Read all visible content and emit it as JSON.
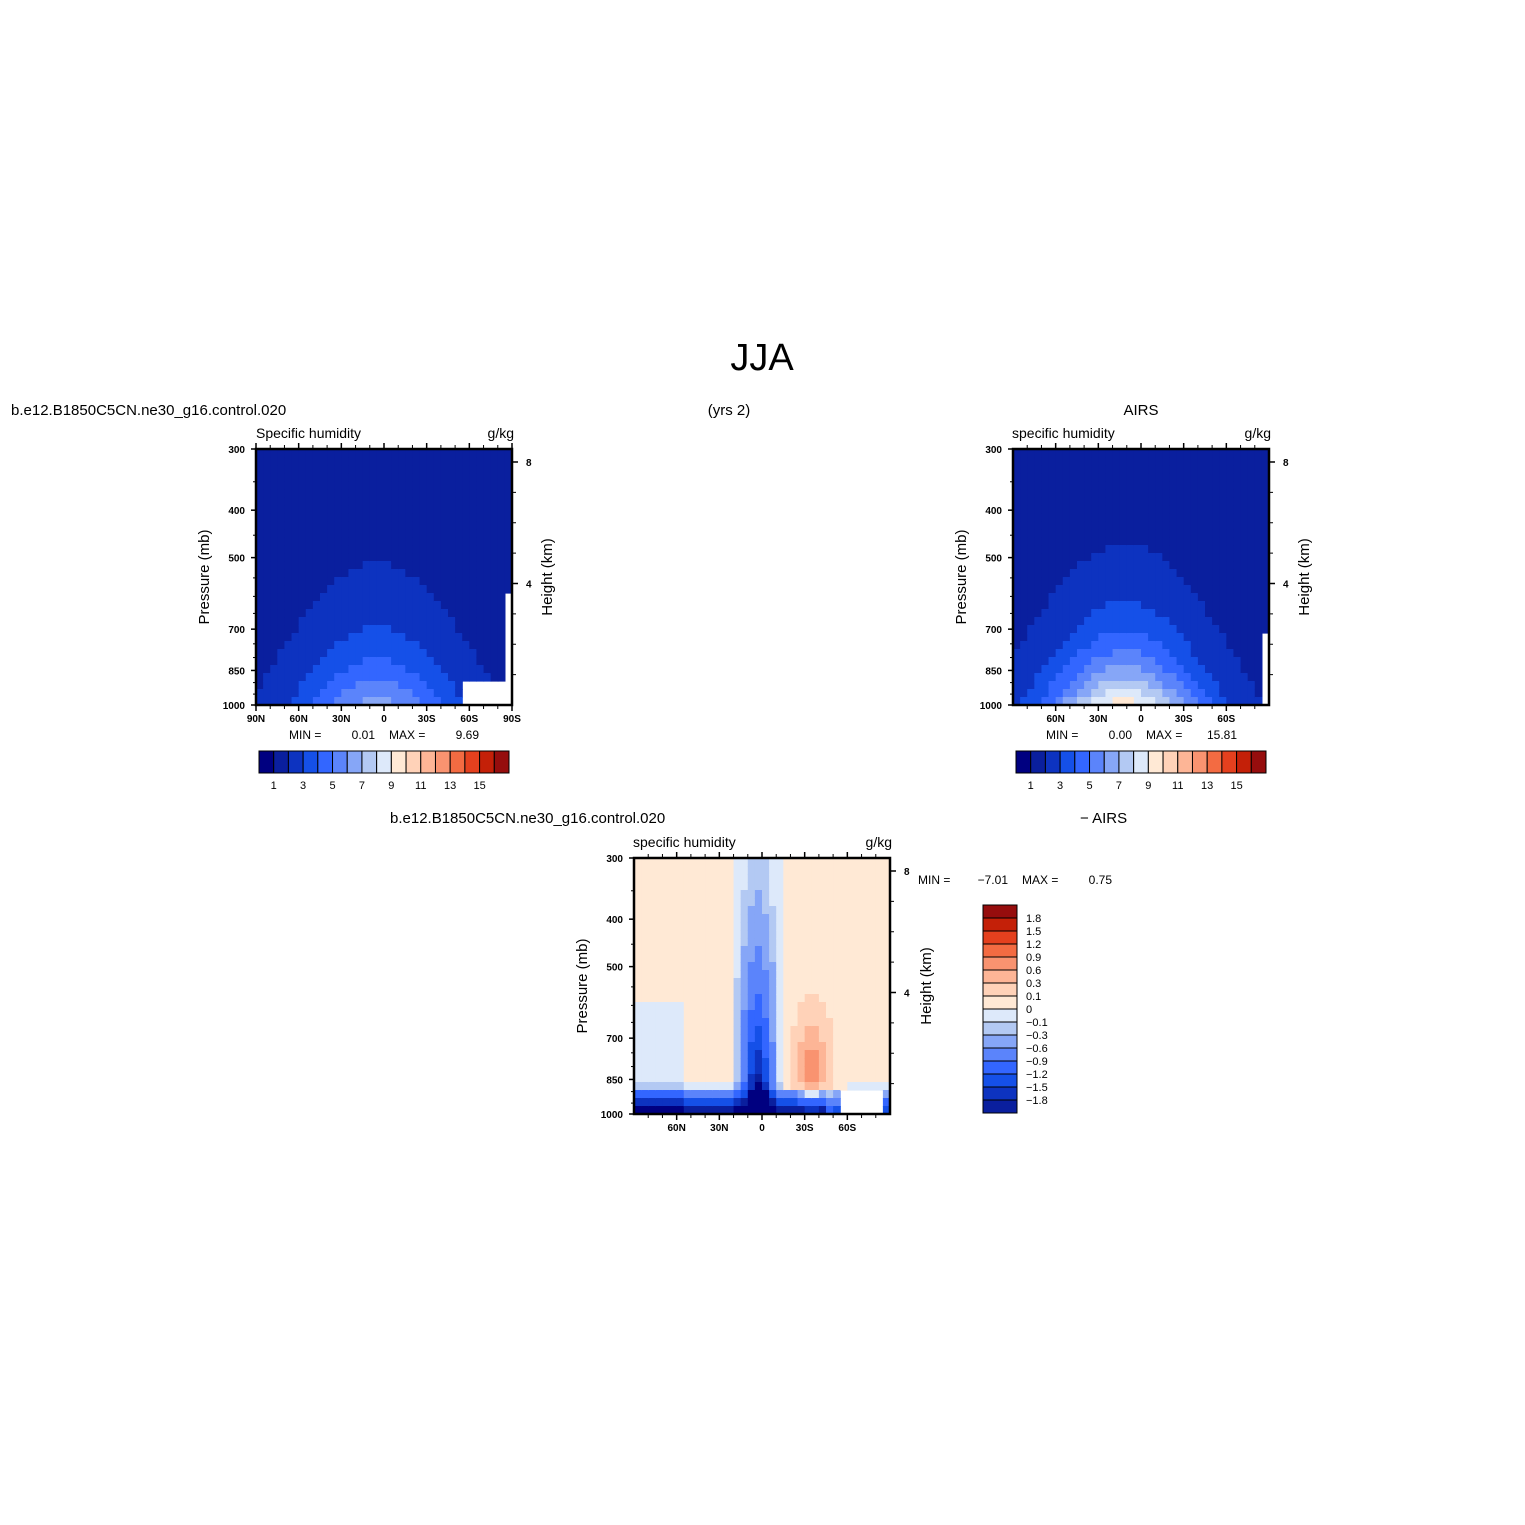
{
  "figure": {
    "title": "JJA",
    "model_case": "b.e12.B1850C5CN.ne30_g16.control.020",
    "years": "(yrs 2)",
    "obs_name": "AIRS",
    "diff_case": "b.e12.B1850C5CN.ne30_g16.control.020",
    "diff_obs": "− AIRS"
  },
  "colors": {
    "fill_scale": [
      "#000080",
      "#0a1f9e",
      "#0d33c0",
      "#1550e8",
      "#3366ff",
      "#5b84fb",
      "#86a6f7",
      "#b3c9f3",
      "#dde9fa",
      "#ffe9d5",
      "#ffd2b8",
      "#fdb596",
      "#f99370",
      "#f36b42",
      "#e4401e",
      "#c42008",
      "#960d0d"
    ],
    "undefined_area": "#ffffff",
    "frame": "#000000"
  },
  "chart_data": [
    {
      "id": "model",
      "type": "heatmap",
      "left_label": "Specific humidity",
      "right_label": "g/kg",
      "ylabel": "Pressure (mb)",
      "y2label": "Height (km)",
      "x_ticks": [
        "90N",
        "60N",
        "30N",
        "0",
        "30S",
        "60S",
        "90S"
      ],
      "y_ticks": [
        "300",
        "400",
        "500",
        "700",
        "850",
        "1000"
      ],
      "y2_ticks": [
        "8",
        "4"
      ],
      "stats": {
        "min_label": "MIN =",
        "min": "0.01",
        "max_label": "MAX =",
        "max": "9.69"
      },
      "colorbar_labels": [
        "1",
        "3",
        "5",
        "7",
        "9",
        "11",
        "13",
        "15"
      ],
      "peak_value": 9.69,
      "peak_lat": 5
    },
    {
      "id": "obs",
      "type": "heatmap",
      "left_label": "specific humidity",
      "right_label": "g/kg",
      "ylabel": "Pressure (mb)",
      "y2label": "Height (km)",
      "x_ticks": [
        "60N",
        "30N",
        "0",
        "30S",
        "60S"
      ],
      "y_ticks": [
        "300",
        "400",
        "500",
        "700",
        "850",
        "1000"
      ],
      "y2_ticks": [
        "8",
        "4"
      ],
      "stats": {
        "min_label": "MIN =",
        "min": "0.00",
        "max_label": "MAX =",
        "max": "15.81"
      },
      "colorbar_labels": [
        "1",
        "3",
        "5",
        "7",
        "9",
        "11",
        "13",
        "15"
      ],
      "peak_value": 15.81,
      "peak_lat": 12
    },
    {
      "id": "diff",
      "type": "heatmap",
      "left_label": "specific humidity",
      "right_label": "g/kg",
      "ylabel": "Pressure (mb)",
      "y2label": "Height (km)",
      "x_ticks": [
        "60N",
        "30N",
        "0",
        "30S",
        "60S"
      ],
      "y_ticks": [
        "300",
        "400",
        "500",
        "700",
        "850",
        "1000"
      ],
      "y2_ticks": [
        "8",
        "4"
      ],
      "stats": {
        "min_label": "MIN =",
        "min": "−7.01",
        "max_label": "MAX =",
        "max": "0.75"
      },
      "colorbar_labels": [
        "1.8",
        "1.5",
        "1.2",
        "0.9",
        "0.6",
        "0.3",
        "0.1",
        "0",
        "−0.1",
        "−0.3",
        "−0.6",
        "−0.9",
        "−1.2",
        "−1.5",
        "−1.8"
      ]
    }
  ]
}
